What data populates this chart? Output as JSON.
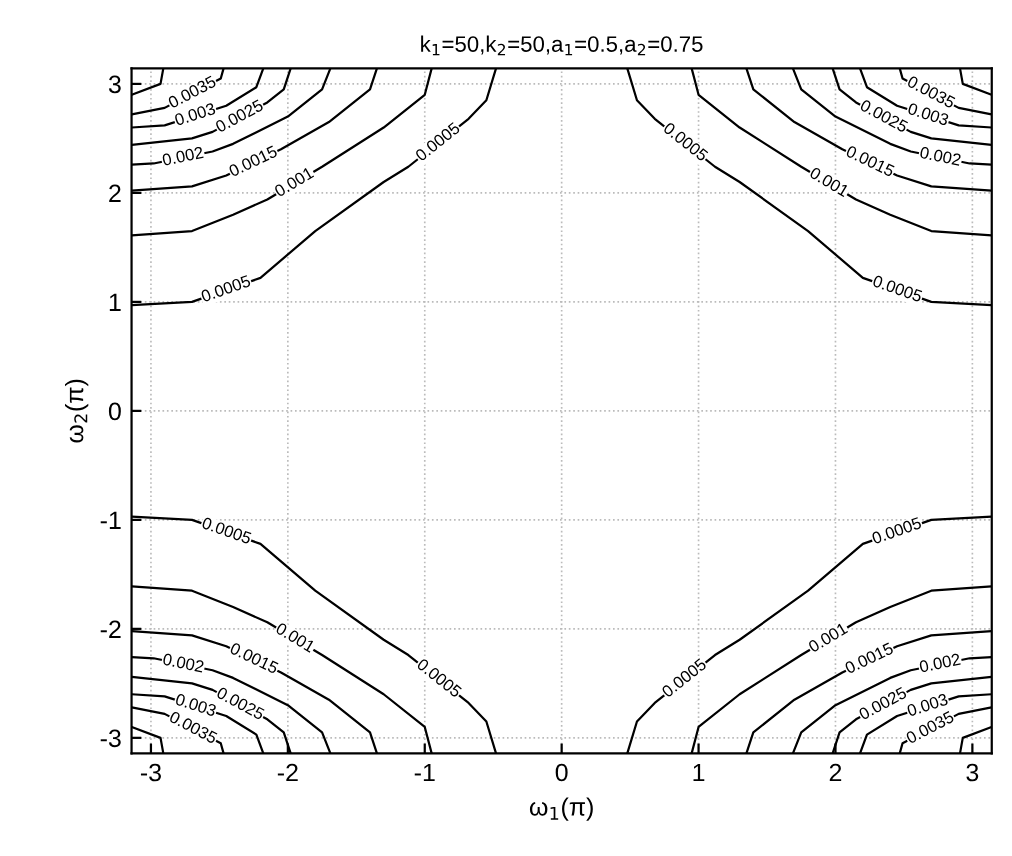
{
  "chart_data": {
    "type": "line",
    "title": "k$_{1}$=50,k$_{2}$=50,a$_{1}$=0.5,a$_{2}$=0.75",
    "xlabel": "ω$_{1}$(π)",
    "ylabel": "ω$_{2}$(π)",
    "xlim": [
      -3.1416,
      3.1416
    ],
    "ylim": [
      -3.1416,
      3.1416
    ],
    "xticks": [
      -3,
      -2,
      -1,
      0,
      1,
      2,
      3
    ],
    "yticks": [
      -3,
      -2,
      -1,
      0,
      1,
      2,
      3
    ],
    "grid": true,
    "series": [
      {
        "color": "#000000",
        "x": [
          0.48,
          0.55,
          0.68,
          1.12,
          1.3,
          1.8,
          2.2,
          2.7,
          3.14
        ],
        "values": [
          3.14,
          2.85,
          2.68,
          2.24,
          2.1,
          1.65,
          1.22,
          1.0,
          0.97
        ]
      },
      {
        "color": "#000000",
        "x": [
          0.95,
          1.0,
          1.3,
          1.75,
          2.15,
          2.4,
          2.7,
          3.14
        ],
        "values": [
          3.14,
          2.9,
          2.6,
          2.24,
          1.94,
          1.8,
          1.65,
          1.61
        ]
      },
      {
        "color": "#000000",
        "x": [
          1.35,
          1.4,
          1.7,
          2.05,
          2.45,
          2.7,
          3.14
        ],
        "values": [
          3.14,
          2.95,
          2.65,
          2.4,
          2.16,
          2.06,
          2.02
        ]
      },
      {
        "color": "#000000",
        "x": [
          1.69,
          1.75,
          2.0,
          2.4,
          2.55,
          2.98,
          3.14
        ],
        "values": [
          3.14,
          2.95,
          2.7,
          2.45,
          2.38,
          2.27,
          2.26
        ]
      },
      {
        "color": "#000000",
        "x": [
          1.98,
          2.03,
          2.15,
          2.55,
          2.7,
          3.14
        ],
        "values": [
          3.14,
          2.95,
          2.83,
          2.56,
          2.5,
          2.44
        ]
      },
      {
        "color": "#000000",
        "x": [
          2.18,
          2.23,
          2.45,
          2.9,
          3.14
        ],
        "values": [
          3.14,
          2.97,
          2.8,
          2.62,
          2.6
        ]
      },
      {
        "color": "#000000",
        "x": [
          2.47,
          2.49,
          2.9,
          3.14
        ],
        "values": [
          3.14,
          3.05,
          2.78,
          2.72
        ]
      },
      {
        "color": "#000000",
        "x": [
          2.91,
          2.93,
          3.14
        ],
        "values": [
          3.14,
          3.0,
          2.9
        ]
      },
      {
        "color": "#000000",
        "x": [
          -0.48,
          -0.55,
          -0.68,
          -1.12,
          -1.3,
          -1.8,
          -2.2,
          -2.7,
          -3.14
        ],
        "values": [
          3.14,
          2.85,
          2.68,
          2.24,
          2.1,
          1.65,
          1.22,
          1.0,
          0.97
        ]
      },
      {
        "color": "#000000",
        "x": [
          -0.95,
          -1.0,
          -1.3,
          -1.75,
          -2.15,
          -2.4,
          -2.7,
          -3.14
        ],
        "values": [
          3.14,
          2.9,
          2.6,
          2.24,
          1.94,
          1.8,
          1.65,
          1.61
        ]
      },
      {
        "color": "#000000",
        "x": [
          -1.35,
          -1.4,
          -1.7,
          -2.05,
          -2.45,
          -2.7,
          -3.14
        ],
        "values": [
          3.14,
          2.95,
          2.65,
          2.4,
          2.16,
          2.06,
          2.02
        ]
      },
      {
        "color": "#000000",
        "x": [
          -1.69,
          -1.75,
          -2.0,
          -2.4,
          -2.55,
          -2.98,
          -3.14
        ],
        "values": [
          3.14,
          2.95,
          2.7,
          2.45,
          2.38,
          2.27,
          2.26
        ]
      },
      {
        "color": "#000000",
        "x": [
          -1.98,
          -2.03,
          -2.15,
          -2.55,
          -2.7,
          -3.14
        ],
        "values": [
          3.14,
          2.95,
          2.83,
          2.56,
          2.5,
          2.44
        ]
      },
      {
        "color": "#000000",
        "x": [
          -2.18,
          -2.23,
          -2.45,
          -2.9,
          -3.14
        ],
        "values": [
          3.14,
          2.97,
          2.8,
          2.62,
          2.6
        ]
      },
      {
        "color": "#000000",
        "x": [
          -2.47,
          -2.49,
          -2.9,
          -3.14
        ],
        "values": [
          3.14,
          3.05,
          2.78,
          2.72
        ]
      },
      {
        "color": "#000000",
        "x": [
          -2.91,
          -2.93,
          -3.14
        ],
        "values": [
          3.14,
          3.0,
          2.9
        ]
      },
      {
        "color": "#000000",
        "x": [
          -0.48,
          -0.55,
          -0.68,
          -1.12,
          -1.3,
          -1.8,
          -2.2,
          -2.7,
          -3.14
        ],
        "values": [
          -3.14,
          -2.85,
          -2.68,
          -2.24,
          -2.1,
          -1.65,
          -1.22,
          -1.0,
          -0.97
        ]
      },
      {
        "color": "#000000",
        "x": [
          -0.95,
          -1.0,
          -1.3,
          -1.75,
          -2.15,
          -2.4,
          -2.7,
          -3.14
        ],
        "values": [
          -3.14,
          -2.9,
          -2.6,
          -2.24,
          -1.94,
          -1.8,
          -1.65,
          -1.61
        ]
      },
      {
        "color": "#000000",
        "x": [
          -1.35,
          -1.4,
          -1.7,
          -2.05,
          -2.45,
          -2.7,
          -3.14
        ],
        "values": [
          -3.14,
          -2.95,
          -2.65,
          -2.4,
          -2.16,
          -2.06,
          -2.02
        ]
      },
      {
        "color": "#000000",
        "x": [
          -1.69,
          -1.75,
          -2.0,
          -2.4,
          -2.55,
          -2.98,
          -3.14
        ],
        "values": [
          -3.14,
          -2.95,
          -2.7,
          -2.45,
          -2.38,
          -2.27,
          -2.26
        ]
      },
      {
        "color": "#000000",
        "x": [
          -1.98,
          -2.03,
          -2.15,
          -2.55,
          -2.7,
          -3.14
        ],
        "values": [
          -3.14,
          -2.95,
          -2.83,
          -2.56,
          -2.5,
          -2.44
        ]
      },
      {
        "color": "#000000",
        "x": [
          -2.18,
          -2.23,
          -2.45,
          -2.9,
          -3.14
        ],
        "values": [
          -3.14,
          -2.97,
          -2.8,
          -2.62,
          -2.6
        ]
      },
      {
        "color": "#000000",
        "x": [
          -2.47,
          -2.49,
          -2.9,
          -3.14
        ],
        "values": [
          -3.14,
          -3.05,
          -2.78,
          -2.72
        ]
      },
      {
        "color": "#000000",
        "x": [
          -2.91,
          -2.93,
          -3.14
        ],
        "values": [
          -3.14,
          -3.0,
          -2.9
        ]
      },
      {
        "color": "#000000",
        "x": [
          0.48,
          0.55,
          0.68,
          1.12,
          1.3,
          1.8,
          2.2,
          2.7,
          3.14
        ],
        "values": [
          -3.14,
          -2.85,
          -2.68,
          -2.24,
          -2.1,
          -1.65,
          -1.22,
          -1.0,
          -0.97
        ]
      },
      {
        "color": "#000000",
        "x": [
          0.95,
          1.0,
          1.3,
          1.75,
          2.15,
          2.4,
          2.7,
          3.14
        ],
        "values": [
          -3.14,
          -2.9,
          -2.6,
          -2.24,
          -1.94,
          -1.8,
          -1.65,
          -1.61
        ]
      },
      {
        "color": "#000000",
        "x": [
          1.35,
          1.4,
          1.7,
          2.05,
          2.45,
          2.7,
          3.14
        ],
        "values": [
          -3.14,
          -2.95,
          -2.65,
          -2.4,
          -2.16,
          -2.06,
          -2.02
        ]
      },
      {
        "color": "#000000",
        "x": [
          1.69,
          1.75,
          2.0,
          2.4,
          2.55,
          2.98,
          3.14
        ],
        "values": [
          -3.14,
          -2.95,
          -2.7,
          -2.45,
          -2.38,
          -2.27,
          -2.26
        ]
      },
      {
        "color": "#000000",
        "x": [
          1.98,
          2.03,
          2.15,
          2.55,
          2.7,
          3.14
        ],
        "values": [
          -3.14,
          -2.95,
          -2.83,
          -2.56,
          -2.5,
          -2.44
        ]
      },
      {
        "color": "#000000",
        "x": [
          2.18,
          2.23,
          2.45,
          2.9,
          3.14
        ],
        "values": [
          -3.14,
          -2.97,
          -2.8,
          -2.62,
          -2.6
        ]
      },
      {
        "color": "#000000",
        "x": [
          2.47,
          2.49,
          2.9,
          3.14
        ],
        "values": [
          -3.14,
          -3.05,
          -2.78,
          -2.72
        ]
      },
      {
        "color": "#000000",
        "x": [
          2.91,
          2.93,
          3.14
        ],
        "values": [
          -3.14,
          -3.0,
          -2.9
        ]
      }
    ],
    "annotations": [
      {
        "text": "0.0005",
        "x": 0.9,
        "y": 2.46
      },
      {
        "text": "0.0005",
        "x": 2.45,
        "y": 1.11
      },
      {
        "text": "0.001",
        "x": 1.95,
        "y": 2.09
      },
      {
        "text": "0.0015",
        "x": 2.25,
        "y": 2.28
      },
      {
        "text": "0.002",
        "x": 2.765,
        "y": 2.325
      },
      {
        "text": "0.0025",
        "x": 2.35,
        "y": 2.695
      },
      {
        "text": "0.003",
        "x": 2.675,
        "y": 2.71
      },
      {
        "text": "0.0035",
        "x": 2.695,
        "y": 2.915
      },
      {
        "text": "0.0005",
        "x": -0.9,
        "y": 2.46
      },
      {
        "text": "0.0005",
        "x": -2.45,
        "y": 1.11
      },
      {
        "text": "0.001",
        "x": -1.95,
        "y": 2.09
      },
      {
        "text": "0.0015",
        "x": -2.25,
        "y": 2.28
      },
      {
        "text": "0.002",
        "x": -2.765,
        "y": 2.325
      },
      {
        "text": "0.0025",
        "x": -2.35,
        "y": 2.695
      },
      {
        "text": "0.003",
        "x": -2.675,
        "y": 2.71
      },
      {
        "text": "0.0035",
        "x": -2.695,
        "y": 2.915
      },
      {
        "text": "0.0005",
        "x": -0.9,
        "y": -2.46
      },
      {
        "text": "0.0005",
        "x": -2.45,
        "y": -1.11
      },
      {
        "text": "0.001",
        "x": -1.95,
        "y": -2.09
      },
      {
        "text": "0.0015",
        "x": -2.25,
        "y": -2.28
      },
      {
        "text": "0.002",
        "x": -2.765,
        "y": -2.325
      },
      {
        "text": "0.0025",
        "x": -2.35,
        "y": -2.695
      },
      {
        "text": "0.003",
        "x": -2.675,
        "y": -2.71
      },
      {
        "text": "0.0035",
        "x": -2.695,
        "y": -2.915
      },
      {
        "text": "0.0005",
        "x": 0.9,
        "y": -2.46
      },
      {
        "text": "0.0005",
        "x": 2.45,
        "y": -1.11
      },
      {
        "text": "0.001",
        "x": 1.95,
        "y": -2.09
      },
      {
        "text": "0.0015",
        "x": 2.25,
        "y": -2.28
      },
      {
        "text": "0.002",
        "x": 2.765,
        "y": -2.325
      },
      {
        "text": "0.0025",
        "x": 2.35,
        "y": -2.695
      },
      {
        "text": "0.003",
        "x": 2.675,
        "y": -2.71
      },
      {
        "text": "0.0035",
        "x": 2.695,
        "y": -2.915
      }
    ]
  }
}
